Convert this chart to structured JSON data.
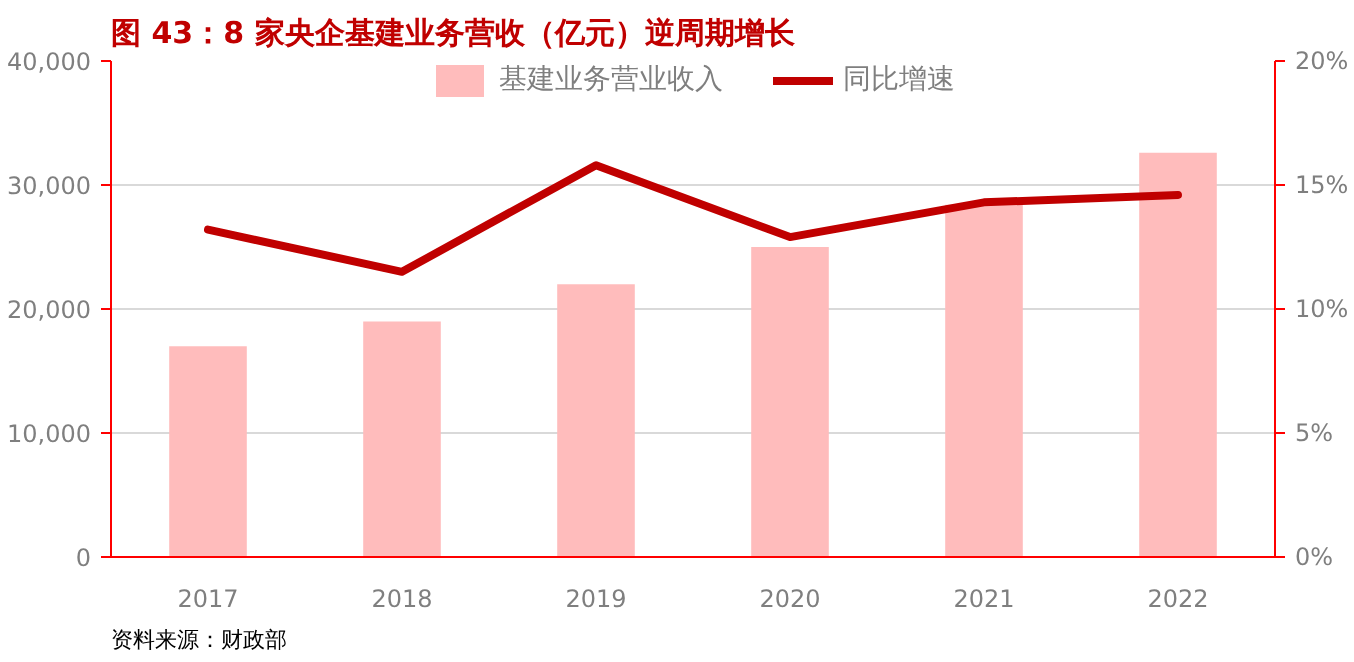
{
  "chart_data": {
    "type": "bar",
    "title": "图 43：8 家央企基建业务营收（亿元）逆周期增长",
    "categories": [
      "2017",
      "2018",
      "2019",
      "2020",
      "2021",
      "2022"
    ],
    "series": [
      {
        "name": "基建业务营业收入",
        "color": "#ffbcbc",
        "values": [
          17000,
          19000,
          22000,
          25000,
          28400,
          32600
        ]
      },
      {
        "name": "同比增速",
        "type": "line",
        "axis": "y2",
        "color": "#c00000",
        "values": [
          13.2,
          11.5,
          15.8,
          12.9,
          14.3,
          14.6
        ]
      }
    ],
    "ylim": [
      0,
      40000
    ],
    "yticks": [
      {
        "value": 0,
        "label": "0"
      },
      {
        "value": 10000,
        "label": "10,000"
      },
      {
        "value": 20000,
        "label": "20,000"
      },
      {
        "value": 30000,
        "label": "30,000"
      },
      {
        "value": 40000,
        "label": "40,000"
      }
    ],
    "y2lim": [
      0,
      20
    ],
    "y2ticks": [
      {
        "value": 0,
        "label": "0%"
      },
      {
        "value": 5,
        "label": "5%"
      },
      {
        "value": 10,
        "label": "10%"
      },
      {
        "value": 15,
        "label": "15%"
      },
      {
        "value": 20,
        "label": "20%"
      }
    ],
    "grid": "y",
    "legend": "top",
    "annotations": [
      "资料来源：财政部"
    ]
  }
}
